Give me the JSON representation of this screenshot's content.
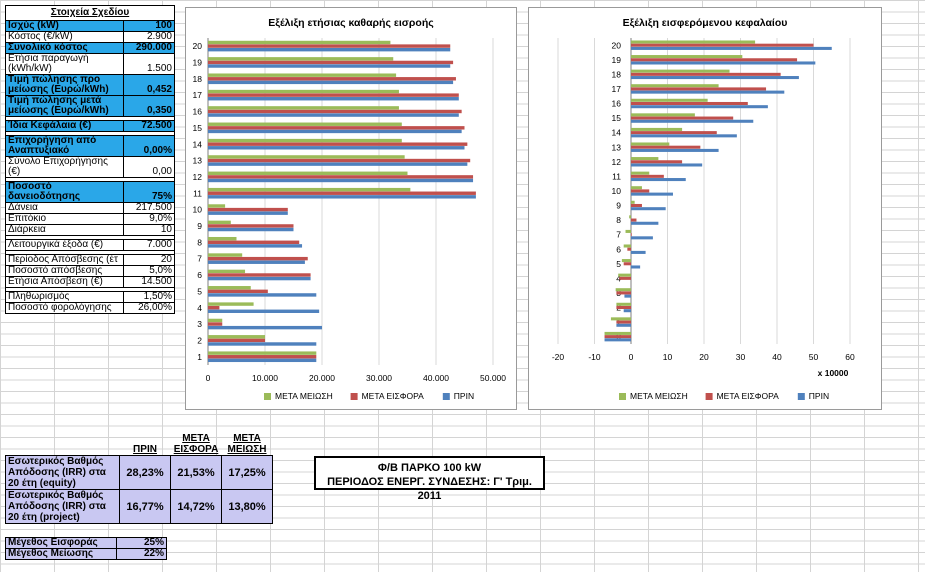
{
  "params": {
    "title": "Στοιχεία Σχεδίου",
    "rows": [
      {
        "label": "Ισχύς (kW)",
        "value": "100",
        "blue": true
      },
      {
        "label": "Κόστος (€/kW)",
        "value": "2.900",
        "blue": false
      },
      {
        "label": "Συνολικό κόστος",
        "value": "290.000",
        "blue": true
      },
      {
        "label": "Ετήσια παραγωγή (kWh/kW)",
        "value": "1.500",
        "blue": false
      },
      {
        "label": "Τιμή πώλησης προ μείωσης (Ευρώ/kWh)",
        "value": "0,452",
        "blue": true
      },
      {
        "label": "Τιμή πώλησης μετά μείωσης (Ευρώ/kWh)",
        "value": "0,350",
        "blue": true
      },
      {
        "label": "Ίδια Κεφάλαια (€)",
        "value": "72.500",
        "blue": true
      },
      {
        "label": "Επιχορήγηση από Αναπτυξιακό",
        "value": "0,00%",
        "blue": true
      },
      {
        "label": "Σύνολο Επιχορήγησης (€)",
        "value": "0,00",
        "blue": false
      },
      {
        "label": "Ποσοστό δανειοδότησης",
        "value": "75%",
        "blue": true
      },
      {
        "label": "Δάνεια",
        "value": "217.500",
        "blue": false
      },
      {
        "label": "Επιτόκιο",
        "value": "9,0%",
        "blue": false
      },
      {
        "label": "Διάρκεια",
        "value": "10",
        "blue": false
      },
      {
        "label": "Λειτουργικά έξοδα (€)",
        "value": "7.000",
        "blue": false
      },
      {
        "label": "Περίοδος Απόσβεσης (έτ",
        "value": "20",
        "blue": false
      },
      {
        "label": "Ποσοστό απόσβεσης",
        "value": "5,0%",
        "blue": false
      },
      {
        "label": "Ετήσια Απόσβεση (€)",
        "value": "14.500",
        "blue": false
      },
      {
        "label": "Πληθωρισμός",
        "value": "1,50%",
        "blue": false
      },
      {
        "label": "Ποσοστό φορολόγησης",
        "value": "26,00%",
        "blue": false
      }
    ]
  },
  "irr": {
    "headers": [
      "ΠΡΙΝ",
      "ΜΕΤΑ ΕΙΣΦΟΡΑ",
      "ΜΕΤΑ ΜΕΙΩΣΗ"
    ],
    "rows": [
      {
        "label": "Εσωτερικός Βαθμός Απόδοσης (IRR) στα 20 έτη (equity)",
        "values": [
          "28,23%",
          "21,53%",
          "17,25%"
        ]
      },
      {
        "label": "Εσωτερικός Βαθμός Απόδοσης (IRR) στα 20 έτη (project)",
        "values": [
          "16,77%",
          "14,72%",
          "13,80%"
        ]
      }
    ]
  },
  "sizes": [
    {
      "label": "Μέγεθος Εισφοράς",
      "value": "25%"
    },
    {
      "label": "Μέγεθος Μείωσης",
      "value": "22%"
    }
  ],
  "banner": {
    "line1": "Φ/Β ΠΑΡΚΟ 100 kW",
    "line2": "ΠΕΡΙΟΔΟΣ ΕΝΕΡΓ. ΣΥΝΔΕΣΗΣ: Γ' Τριμ. 2011"
  },
  "chart_data": [
    {
      "type": "bar",
      "orientation": "horizontal",
      "title": "Εξέλιξη ετήσιας καθαρής εισροής",
      "categories": [
        "1",
        "2",
        "3",
        "4",
        "5",
        "6",
        "7",
        "8",
        "9",
        "10",
        "11",
        "12",
        "13",
        "14",
        "15",
        "16",
        "17",
        "18",
        "19",
        "20"
      ],
      "xlim": [
        0,
        50000
      ],
      "xticks": [
        "0",
        "10.000",
        "20.000",
        "30.000",
        "40.000",
        "50.000"
      ],
      "xtick_values": [
        0,
        10000,
        20000,
        30000,
        40000,
        50000
      ],
      "legend_position": "bottom",
      "series": [
        {
          "name": "ΜΕΤΑ ΜΕΙΩΣΗ",
          "color": "#9bbb59",
          "values": [
            19000,
            10000,
            2500,
            8000,
            7500,
            6500,
            6000,
            5000,
            4000,
            3000,
            35500,
            35000,
            34500,
            34000,
            34000,
            33500,
            33500,
            33000,
            32500,
            32000
          ]
        },
        {
          "name": "ΜΕΤΑ ΕΙΣΦΟΡΑ",
          "color": "#c0504d",
          "values": [
            19000,
            10000,
            2500,
            2000,
            10500,
            18000,
            17500,
            16000,
            15000,
            14000,
            47000,
            46500,
            46000,
            45500,
            45000,
            44500,
            44000,
            43500,
            43000,
            42500
          ]
        },
        {
          "name": "ΠΡΙΝ",
          "color": "#4f81bd",
          "values": [
            19000,
            19000,
            20000,
            19500,
            19000,
            18000,
            17000,
            16500,
            15000,
            14000,
            47000,
            46500,
            45500,
            45000,
            44500,
            44000,
            44000,
            43000,
            42500,
            42500
          ]
        }
      ]
    },
    {
      "type": "bar",
      "orientation": "horizontal",
      "title": "Εξέλιξη εισφερόμενου κεφαλαίου",
      "categories": [
        "0",
        "1",
        "2",
        "3",
        "4",
        "5",
        "6",
        "7",
        "8",
        "9",
        "10",
        "11",
        "12",
        "13",
        "14",
        "15",
        "16",
        "17",
        "18",
        "19",
        "20"
      ],
      "xlim": [
        -20,
        60
      ],
      "xticks": [
        "-20",
        "-10",
        "0",
        "10",
        "20",
        "30",
        "40",
        "50",
        "60"
      ],
      "xtick_values": [
        -20,
        -10,
        0,
        10,
        20,
        30,
        40,
        50,
        60
      ],
      "xunit": "x 10000",
      "legend_position": "bottom",
      "series": [
        {
          "name": "ΜΕΤΑ ΜΕΙΩΣΗ",
          "color": "#9bbb59",
          "values": [
            -7.25,
            -5.5,
            -4,
            -4.2,
            -3.5,
            -2.5,
            -2,
            -1.5,
            -0.5,
            1,
            3,
            5,
            7.5,
            10.5,
            14,
            17.5,
            21,
            24,
            27,
            30.5,
            34
          ]
        },
        {
          "name": "ΜΕΤΑ ΕΙΣΦΟΡΑ",
          "color": "#c0504d",
          "values": [
            -7.25,
            -4,
            -4,
            -4,
            -3.2,
            -2,
            -1,
            0.2,
            1.5,
            3,
            5,
            9,
            14,
            19,
            23.5,
            28,
            32,
            37,
            41,
            45.5,
            50
          ]
        },
        {
          "name": "ΠΡΙΝ",
          "color": "#4f81bd",
          "values": [
            -7.25,
            -4,
            -2,
            -1.8,
            0,
            2.5,
            4,
            6,
            7.5,
            9.5,
            11.5,
            15,
            19.5,
            24,
            29,
            33.5,
            37.5,
            42,
            46,
            50.5,
            55
          ]
        }
      ]
    }
  ]
}
